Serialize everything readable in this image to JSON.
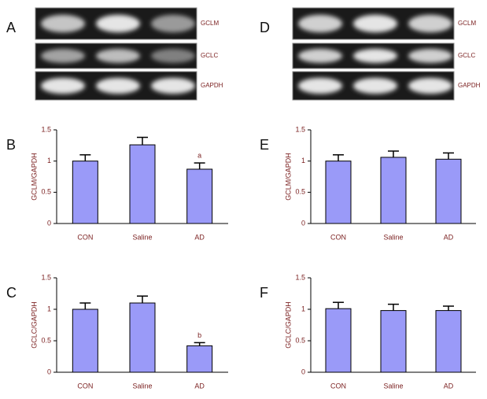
{
  "gels": [
    {
      "panel_label": "A",
      "bands": [
        "GCLM",
        "GCLC",
        "GAPDH"
      ]
    },
    {
      "panel_label": "D",
      "bands": [
        "GCLM",
        "GCLC",
        "GAPDH"
      ]
    }
  ],
  "chart_data": [
    {
      "type": "bar",
      "panel_label": "B",
      "y_label": "GCLM/GAPDH",
      "categories": [
        "CON",
        "Saline",
        "AD"
      ],
      "values": [
        1.0,
        1.26,
        0.87
      ],
      "errors": [
        0.1,
        0.12,
        0.1
      ],
      "notes": [
        null,
        null,
        "a"
      ],
      "color": "#9a9af8",
      "ylim": [
        0,
        1.5
      ],
      "yticks": [
        0,
        0.5,
        1,
        1.5
      ]
    },
    {
      "type": "bar",
      "panel_label": "C",
      "y_label": "GCLC/GAPDH",
      "categories": [
        "CON",
        "Saline",
        "AD"
      ],
      "values": [
        1.0,
        1.1,
        0.42
      ],
      "errors": [
        0.1,
        0.11,
        0.05
      ],
      "notes": [
        null,
        null,
        "b"
      ],
      "color": "#9a9af8",
      "ylim": [
        0,
        1.5
      ],
      "yticks": [
        0,
        0.5,
        1,
        1.5
      ]
    },
    {
      "type": "bar",
      "panel_label": "E",
      "y_label": "GCLM/GAPDH",
      "categories": [
        "CON",
        "Saline",
        "AD"
      ],
      "values": [
        1.0,
        1.06,
        1.03
      ],
      "errors": [
        0.1,
        0.1,
        0.1
      ],
      "notes": [
        null,
        null,
        null
      ],
      "color": "#9a9af8",
      "ylim": [
        0,
        1.5
      ],
      "yticks": [
        0,
        0.5,
        1,
        1.5
      ]
    },
    {
      "type": "bar",
      "panel_label": "F",
      "y_label": "GCLC/GAPDH",
      "categories": [
        "CON",
        "Saline",
        "AD"
      ],
      "values": [
        1.01,
        0.98,
        0.98
      ],
      "errors": [
        0.1,
        0.1,
        0.07
      ],
      "notes": [
        null,
        null,
        null
      ],
      "color": "#9a9af8",
      "ylim": [
        0,
        1.5
      ],
      "yticks": [
        0,
        0.5,
        1,
        1.5
      ]
    }
  ]
}
